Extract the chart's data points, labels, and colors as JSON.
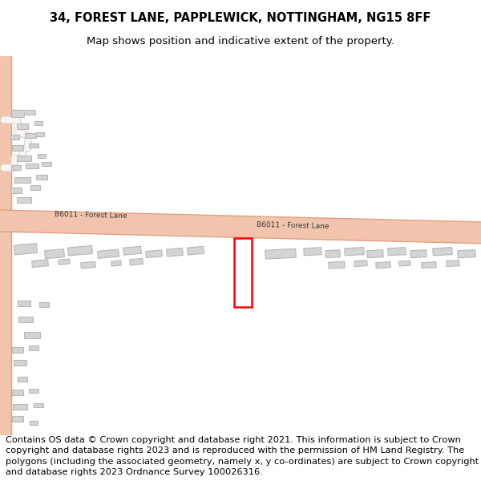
{
  "title_line1": "34, FOREST LANE, PAPPLEWICK, NOTTINGHAM, NG15 8FF",
  "title_line2": "Map shows position and indicative extent of the property.",
  "footer_text": "Contains OS data © Crown copyright and database right 2021. This information is subject to Crown copyright and database rights 2023 and is reproduced with the permission of HM Land Registry. The polygons (including the associated geometry, namely x, y co-ordinates) are subject to Crown copyright and database rights 2023 Ordnance Survey 100026316.",
  "bg_color": "#ffffff",
  "map_bg": "#faf5f3",
  "road_color": "#f2c4ae",
  "road_edge": "#e0a080",
  "building_fill": "#d4d4d4",
  "building_edge": "#b8b8b8",
  "highlight_color": "#ff0000",
  "road_label": "B6011 - Forest Lane",
  "title_fontsize": 10.5,
  "subtitle_fontsize": 9.5,
  "footer_fontsize": 8.2
}
